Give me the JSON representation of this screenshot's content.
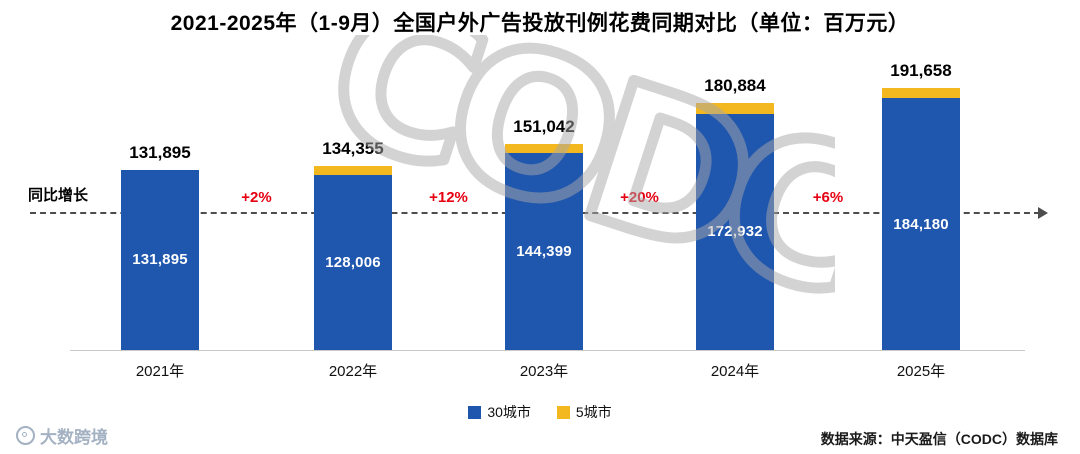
{
  "title": "2021-2025年（1-9月）全国户外广告投放刊例花费同期对比（单位：百万元）",
  "yoy_label": "同比增长",
  "watermark": "CODC",
  "logo_text": "大数跨境",
  "source": "数据来源：中天盈信（CODC）数据库",
  "colors": {
    "blue": "#1f56ae",
    "gold": "#f3b71f",
    "growth_red": "#e60012"
  },
  "chart_data": {
    "type": "bar",
    "stacked": true,
    "title": "2021-2025年（1-9月）全国户外广告投放刊例花费同期对比（单位：百万元）",
    "categories": [
      "2021年",
      "2022年",
      "2023年",
      "2024年",
      "2025年"
    ],
    "series": [
      {
        "name": "30城市",
        "color": "#1f56ae",
        "values": [
          131895,
          128006,
          144399,
          172932,
          184180
        ]
      },
      {
        "name": "5城市",
        "color": "#f3b71f",
        "values": [
          0,
          6349,
          6643,
          7952,
          7478
        ]
      }
    ],
    "totals": [
      131895,
      134355,
      151042,
      180884,
      191658
    ],
    "growth_labels": [
      "+2%",
      "+12%",
      "+20%",
      "+6%"
    ],
    "unit": "百万元",
    "ylim": [
      0,
      200000
    ],
    "grid": false,
    "legend_position": "bottom"
  }
}
